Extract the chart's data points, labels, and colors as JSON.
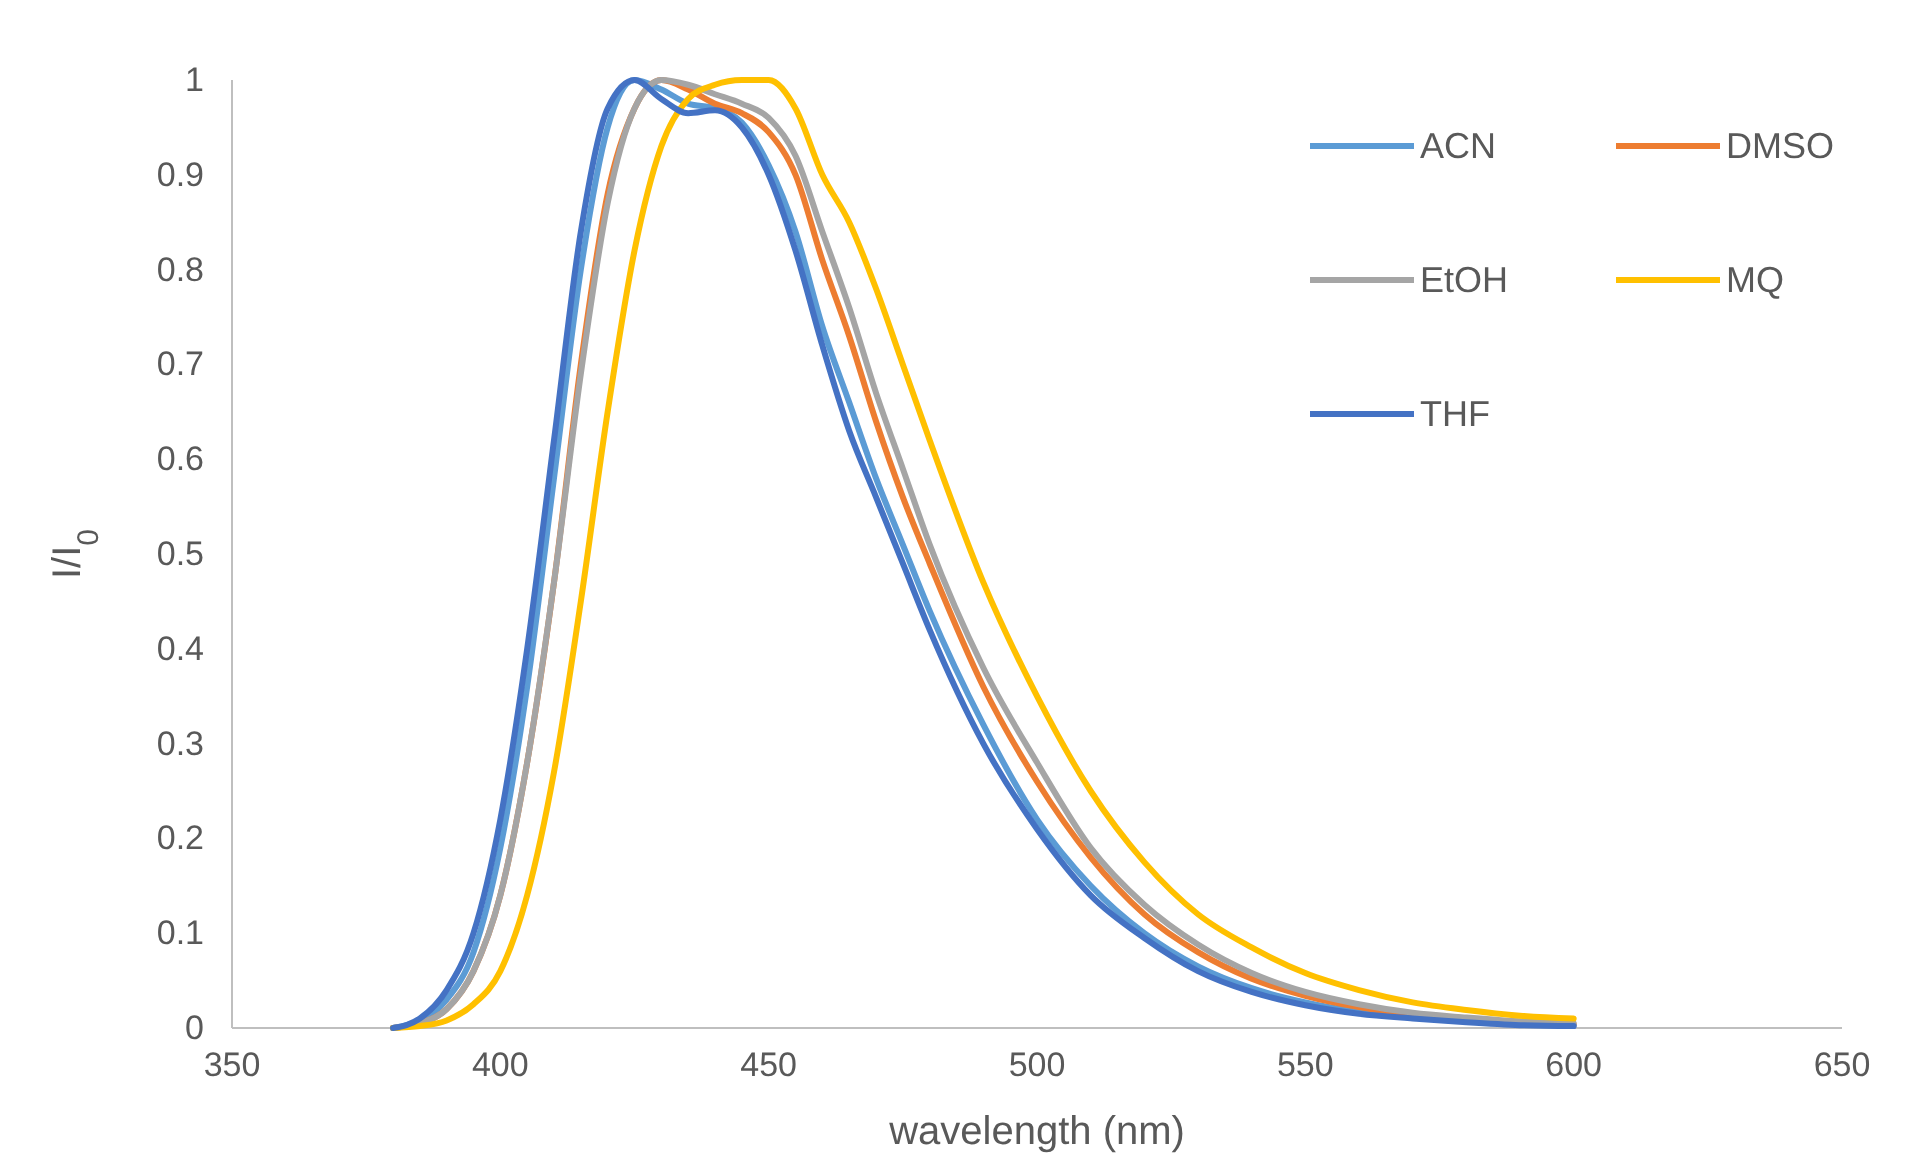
{
  "chart_data": {
    "type": "line",
    "xlabel": "wavelength (nm)",
    "ylabel": "I/I$_{0}$",
    "x": [
      380,
      385,
      390,
      395,
      400,
      405,
      410,
      415,
      420,
      425,
      430,
      435,
      440,
      445,
      450,
      455,
      460,
      465,
      470,
      475,
      480,
      490,
      500,
      510,
      520,
      530,
      540,
      550,
      560,
      570,
      580,
      590,
      600
    ],
    "xlim": [
      350,
      650
    ],
    "xticks": [
      350,
      400,
      450,
      500,
      550,
      600,
      650
    ],
    "ylim": [
      0,
      1
    ],
    "yticks": [
      0,
      0.1,
      0.2,
      0.3,
      0.4,
      0.5,
      0.6,
      0.7,
      0.8,
      0.9,
      1
    ],
    "grid": false,
    "legend": "top right",
    "marker": "none",
    "line_style": "solid",
    "series": [
      {
        "name": "ACN",
        "color": "#5b9bd5",
        "values": [
          0,
          0.008,
          0.03,
          0.08,
          0.19,
          0.36,
          0.58,
          0.8,
          0.95,
          1.0,
          0.99,
          0.975,
          0.97,
          0.955,
          0.91,
          0.84,
          0.74,
          0.66,
          0.58,
          0.51,
          0.44,
          0.32,
          0.22,
          0.15,
          0.1,
          0.065,
          0.042,
          0.027,
          0.017,
          0.011,
          0.007,
          0.004,
          0.003
        ]
      },
      {
        "name": "DMSO",
        "color": "#ed7d31",
        "values": [
          0,
          0.005,
          0.02,
          0.06,
          0.14,
          0.28,
          0.47,
          0.7,
          0.88,
          0.97,
          1.0,
          0.99,
          0.975,
          0.965,
          0.945,
          0.9,
          0.81,
          0.73,
          0.64,
          0.56,
          0.49,
          0.36,
          0.26,
          0.18,
          0.12,
          0.08,
          0.052,
          0.034,
          0.022,
          0.014,
          0.009,
          0.006,
          0.004
        ]
      },
      {
        "name": "EtOH",
        "color": "#a5a5a5",
        "values": [
          0,
          0.005,
          0.02,
          0.06,
          0.14,
          0.28,
          0.47,
          0.69,
          0.87,
          0.97,
          1.0,
          0.995,
          0.985,
          0.975,
          0.96,
          0.92,
          0.84,
          0.76,
          0.67,
          0.59,
          0.51,
          0.38,
          0.28,
          0.19,
          0.13,
          0.088,
          0.058,
          0.038,
          0.025,
          0.016,
          0.011,
          0.007,
          0.005
        ]
      },
      {
        "name": "MQ",
        "color": "#ffc000",
        "values": [
          0,
          0.002,
          0.008,
          0.025,
          0.06,
          0.14,
          0.27,
          0.45,
          0.65,
          0.82,
          0.93,
          0.98,
          0.995,
          1.0,
          1.0,
          0.97,
          0.9,
          0.85,
          0.78,
          0.7,
          0.62,
          0.47,
          0.35,
          0.25,
          0.175,
          0.12,
          0.085,
          0.058,
          0.04,
          0.027,
          0.019,
          0.013,
          0.01
        ]
      },
      {
        "name": "THF",
        "color": "#4472c4",
        "values": [
          0,
          0.01,
          0.04,
          0.1,
          0.22,
          0.4,
          0.62,
          0.84,
          0.97,
          1.0,
          0.98,
          0.965,
          0.968,
          0.95,
          0.9,
          0.82,
          0.72,
          0.63,
          0.56,
          0.49,
          0.42,
          0.3,
          0.21,
          0.14,
          0.095,
          0.06,
          0.038,
          0.024,
          0.015,
          0.01,
          0.006,
          0.003,
          0.002
        ]
      }
    ]
  }
}
